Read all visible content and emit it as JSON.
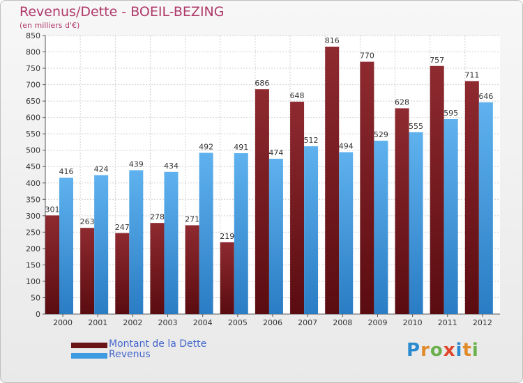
{
  "title": "Revenus/Dette - BOEIL-BEZING",
  "subtitle": "(en milliers d'€)",
  "logo": {
    "text": "Proxiti",
    "colors": [
      "#2a8ad0",
      "#e08a2a",
      "#6ab04c",
      "#e0452a",
      "#2a8ad0",
      "#e08a2a",
      "#6ab04c"
    ]
  },
  "chart_data": {
    "type": "bar",
    "categories": [
      "2000",
      "2001",
      "2002",
      "2003",
      "2004",
      "2005",
      "2006",
      "2007",
      "2008",
      "2009",
      "2010",
      "2011",
      "2012"
    ],
    "series": [
      {
        "name": "Montant de la Dette",
        "color": "#7a1e22",
        "values": [
          301,
          263,
          247,
          278,
          271,
          219,
          686,
          648,
          816,
          770,
          628,
          757,
          711
        ]
      },
      {
        "name": "Revenus",
        "color": "#3f9be0",
        "values": [
          416,
          424,
          439,
          434,
          492,
          491,
          474,
          512,
          494,
          529,
          555,
          595,
          646
        ]
      }
    ],
    "ylim": [
      0,
      850
    ],
    "yticks": [
      0,
      50,
      100,
      150,
      200,
      250,
      300,
      350,
      400,
      450,
      500,
      550,
      600,
      650,
      700,
      750,
      800,
      850
    ],
    "grid": true,
    "legend_position": "bottom-left"
  }
}
